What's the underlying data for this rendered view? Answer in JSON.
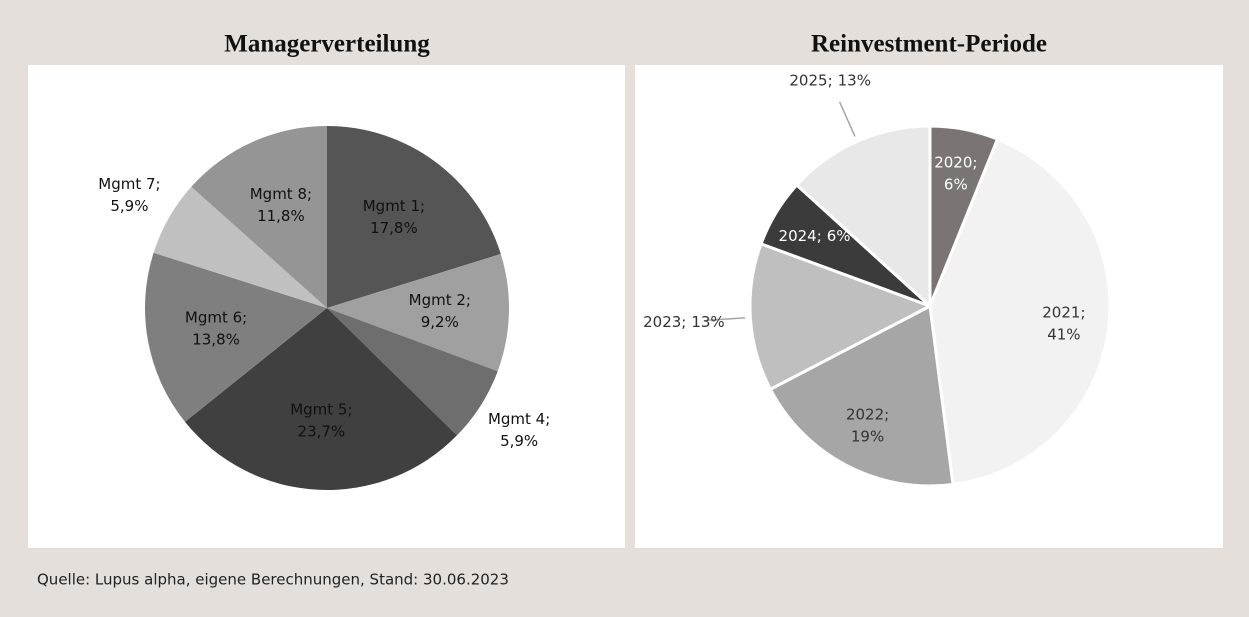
{
  "chart_data": [
    {
      "type": "pie",
      "title": "Managerverteilung",
      "categories": [
        "Mgmt 1;",
        "Mgmt 2;",
        "Mgmt 4;",
        "Mgmt 5;",
        "Mgmt 6;",
        "Mgmt 7;",
        "Mgmt 8;"
      ],
      "values": [
        17.8,
        9.2,
        5.9,
        23.7,
        13.8,
        5.9,
        11.8
      ],
      "value_labels": [
        "17,8%",
        "9,2%",
        "5,9%",
        "23,7%",
        "13,8%",
        "5,9%",
        "11,8%"
      ],
      "colors": [
        "#555555",
        "#a0a0a0",
        "#6e6e6e",
        "#404040",
        "#7f7f7f",
        "#c0c0c0",
        "#959595"
      ]
    },
    {
      "type": "pie",
      "title": "Reinvestment-Periode",
      "categories": [
        "2020;",
        "2021;",
        "2022;",
        "2023;",
        "2024;",
        "2025;"
      ],
      "values": [
        6,
        41,
        19,
        13,
        6,
        13
      ],
      "value_labels": [
        "6%",
        "41%",
        "19%",
        "13%",
        "6%",
        "13%"
      ],
      "colors": [
        "#7a7574",
        "#f2f2f2",
        "#a6a6a6",
        "#bfbfbf",
        "#3b3b3b",
        "#e8e8e8"
      ]
    }
  ],
  "source": "Quelle: Lupus alpha, eigene Berechnungen, Stand: 30.06.2023"
}
